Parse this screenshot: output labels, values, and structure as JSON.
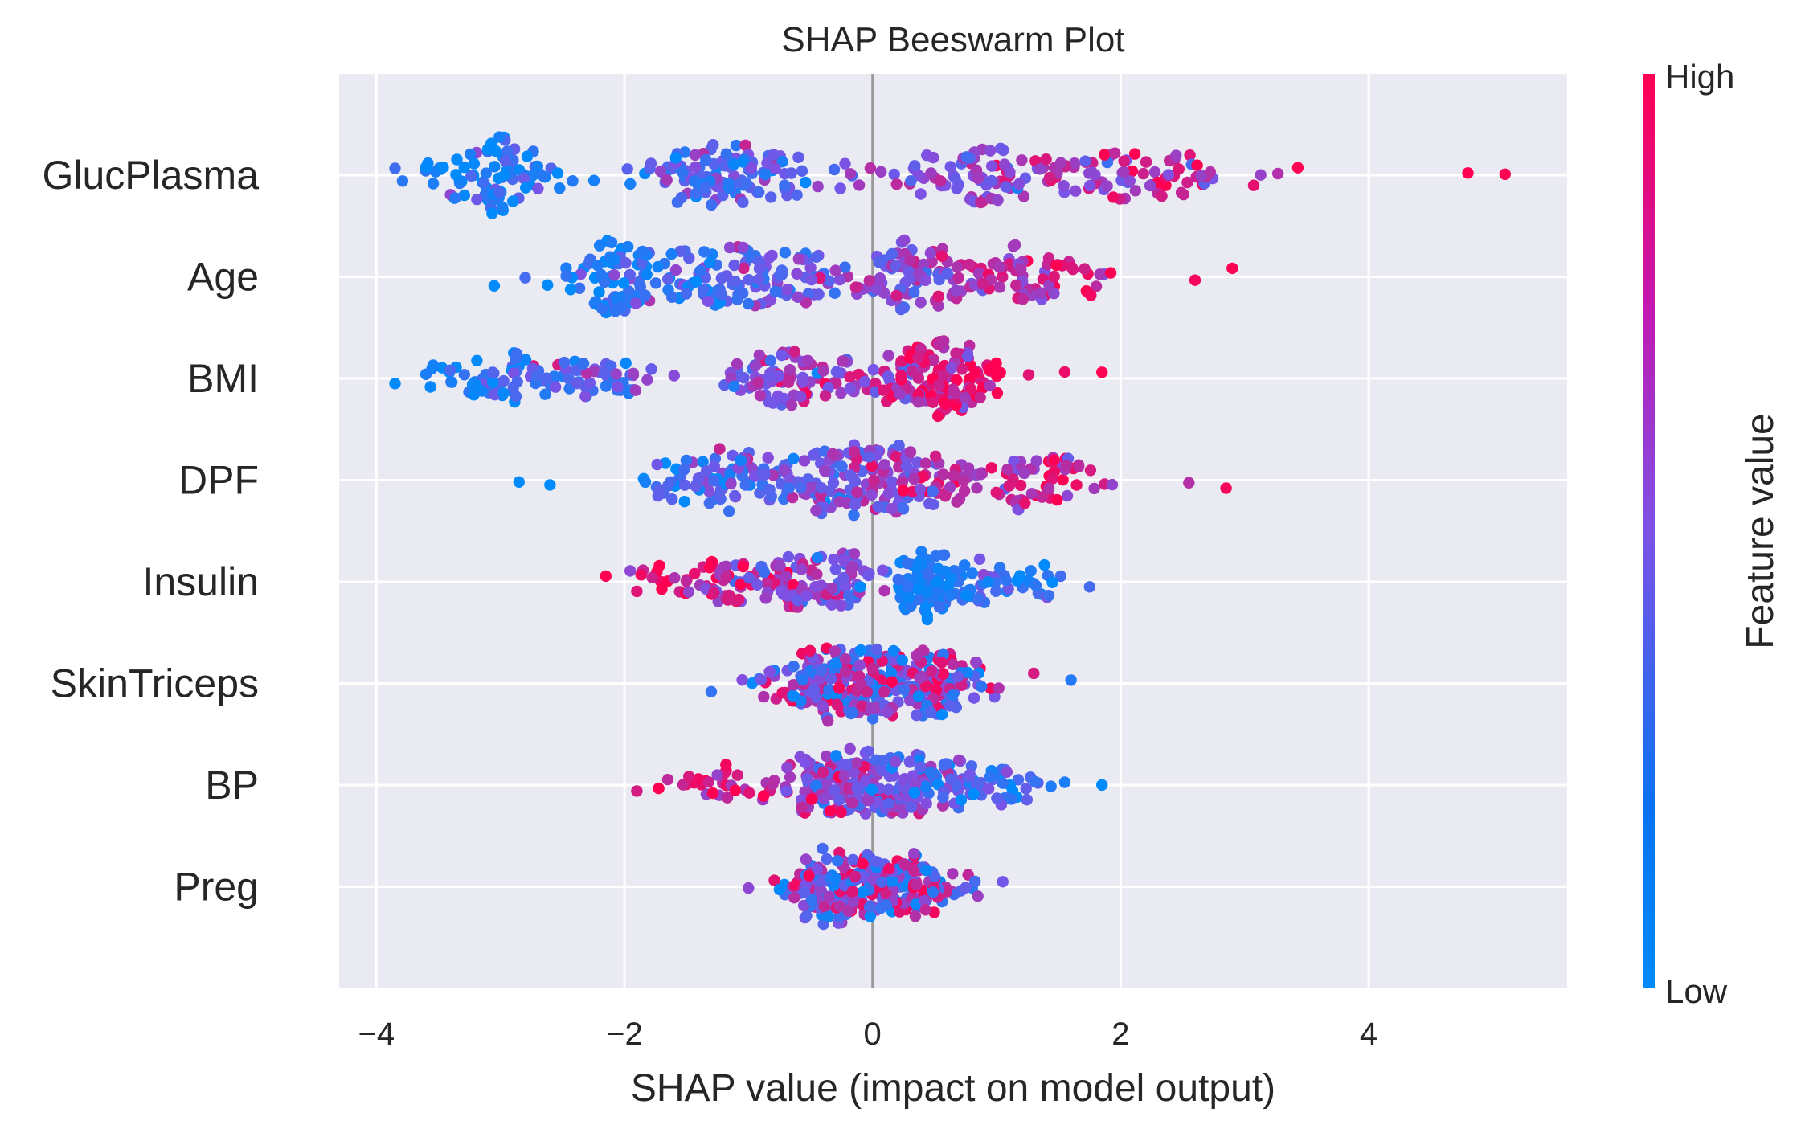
{
  "chart_data": {
    "type": "scatter",
    "title": "SHAP Beeswarm Plot",
    "xlabel": "SHAP value (impact on model output)",
    "xlim": [
      -4.3,
      5.6
    ],
    "xticks": [
      {
        "value": -4,
        "label": "−4"
      },
      {
        "value": -2,
        "label": "−2"
      },
      {
        "value": 0,
        "label": "0"
      },
      {
        "value": 2,
        "label": "2"
      },
      {
        "value": 4,
        "label": "4"
      }
    ],
    "grid": true,
    "background_color": "#eaeaf2",
    "zero_line": true,
    "features": [
      {
        "name": "GlucPlasma",
        "min": -3.85,
        "max": 5.1,
        "low_end": "left",
        "peaks": [
          {
            "x": -3.0,
            "w": 0.5,
            "h": 1.0
          },
          {
            "x": -1.2,
            "w": 0.7,
            "h": 0.9
          },
          {
            "x": 0.9,
            "w": 0.6,
            "h": 0.7
          },
          {
            "x": 2.0,
            "w": 0.8,
            "h": 0.5
          }
        ],
        "n": 360
      },
      {
        "name": "Age",
        "min": -3.05,
        "max": 2.9,
        "low_end": "left",
        "peaks": [
          {
            "x": -2.0,
            "w": 0.4,
            "h": 1.0
          },
          {
            "x": -1.0,
            "w": 0.6,
            "h": 0.8
          },
          {
            "x": 0.3,
            "w": 0.5,
            "h": 1.0
          },
          {
            "x": 1.2,
            "w": 0.5,
            "h": 0.6
          }
        ],
        "n": 340
      },
      {
        "name": "BMI",
        "min": -3.85,
        "max": 1.85,
        "low_end": "left",
        "peaks": [
          {
            "x": -3.0,
            "w": 0.5,
            "h": 0.4
          },
          {
            "x": -2.2,
            "w": 0.4,
            "h": 0.35
          },
          {
            "x": -0.6,
            "w": 0.5,
            "h": 0.6
          },
          {
            "x": 0.5,
            "w": 0.45,
            "h": 1.0
          }
        ],
        "n": 330
      },
      {
        "name": "DPF",
        "min": -2.85,
        "max": 2.85,
        "low_end": "left",
        "peaks": [
          {
            "x": -1.2,
            "w": 0.6,
            "h": 0.8
          },
          {
            "x": -0.4,
            "w": 0.4,
            "h": 1.0
          },
          {
            "x": 0.3,
            "w": 0.5,
            "h": 0.9
          },
          {
            "x": 1.4,
            "w": 0.6,
            "h": 0.5
          }
        ],
        "n": 330
      },
      {
        "name": "Insulin",
        "min": -2.15,
        "max": 1.75,
        "low_end": "right",
        "peaks": [
          {
            "x": -1.2,
            "w": 0.5,
            "h": 0.4
          },
          {
            "x": -0.4,
            "w": 0.4,
            "h": 0.5
          },
          {
            "x": 0.5,
            "w": 0.25,
            "h": 1.0
          },
          {
            "x": 1.1,
            "w": 0.3,
            "h": 0.2
          }
        ],
        "n": 300
      },
      {
        "name": "SkinTriceps",
        "min": -1.3,
        "max": 1.6,
        "low_end": "mix",
        "peaks": [
          {
            "x": -0.3,
            "w": 0.45,
            "h": 1.0
          },
          {
            "x": 0.4,
            "w": 0.4,
            "h": 0.8
          }
        ],
        "n": 300
      },
      {
        "name": "BP",
        "min": -1.9,
        "max": 1.85,
        "low_end": "right",
        "peaks": [
          {
            "x": -0.2,
            "w": 0.5,
            "h": 1.0
          },
          {
            "x": 0.7,
            "w": 0.5,
            "h": 0.6
          },
          {
            "x": -1.2,
            "w": 0.3,
            "h": 0.25
          }
        ],
        "n": 300
      },
      {
        "name": "Preg",
        "min": -1.0,
        "max": 1.05,
        "low_end": "mix",
        "peaks": [
          {
            "x": -0.3,
            "w": 0.35,
            "h": 1.0
          },
          {
            "x": 0.3,
            "w": 0.35,
            "h": 0.8
          }
        ],
        "n": 280
      }
    ],
    "colorbar": {
      "label": "Feature value",
      "high_label": "High",
      "low_label": "Low",
      "low_color": "#008afb",
      "mid_color": "#7c52e6",
      "high_color": "#ff0052"
    }
  }
}
